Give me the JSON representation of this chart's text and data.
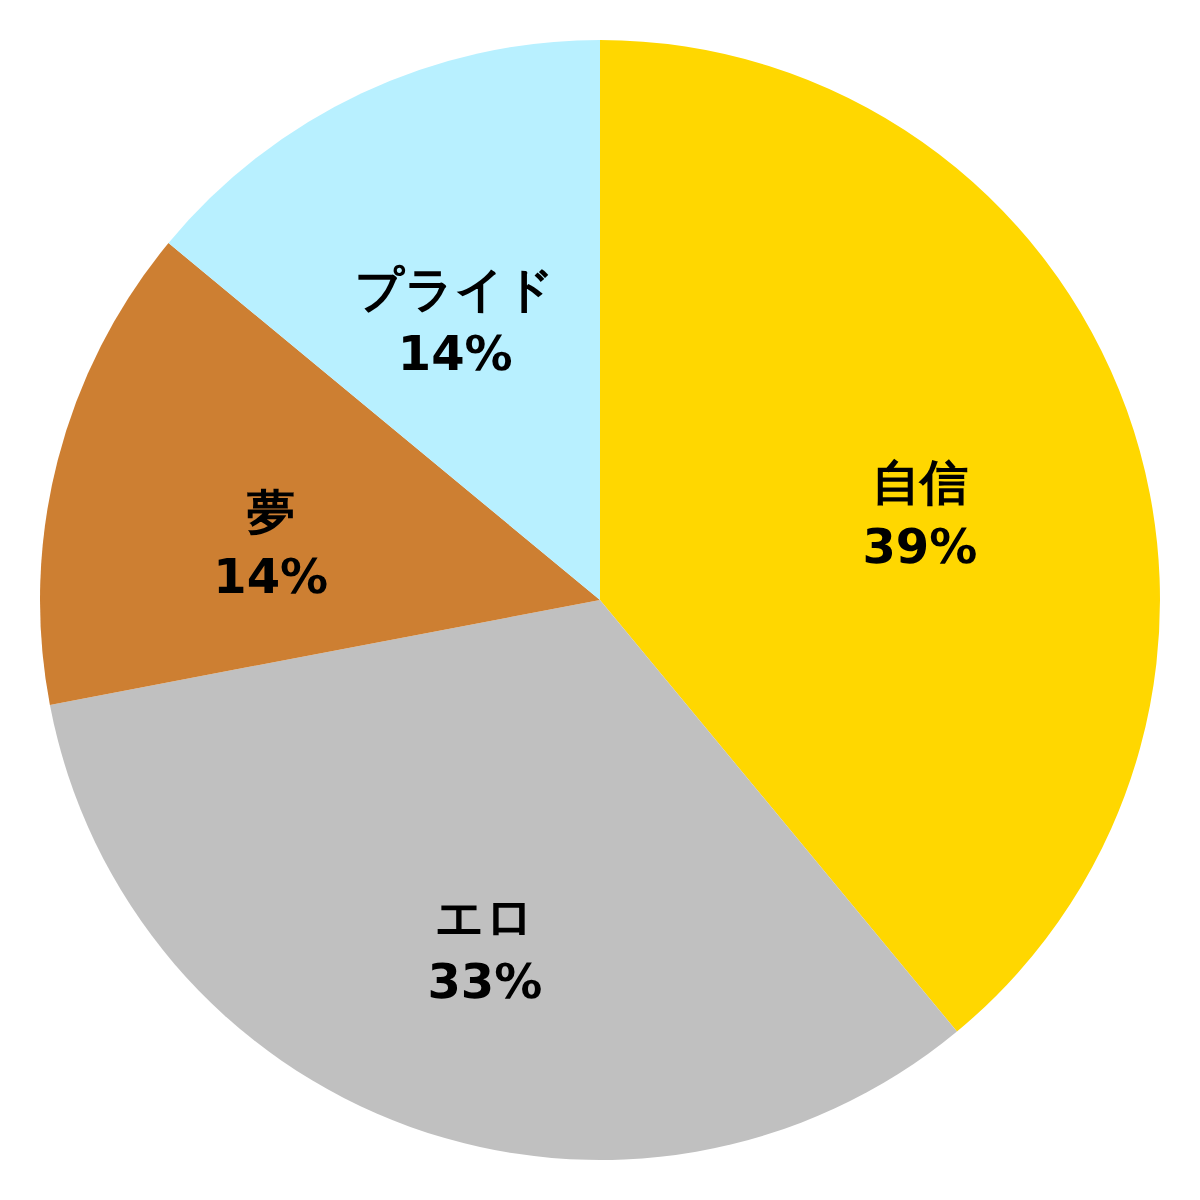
{
  "chart_data": {
    "type": "pie",
    "categories": [
      "自信",
      "エロ",
      "夢",
      "プライド"
    ],
    "values": [
      39,
      33,
      14,
      14
    ],
    "value_labels": [
      "39%",
      "33%",
      "14%",
      "14%"
    ],
    "colors": [
      "#ffd700",
      "#c0c0c0",
      "#cd7f32",
      "#b8f0ff"
    ]
  }
}
